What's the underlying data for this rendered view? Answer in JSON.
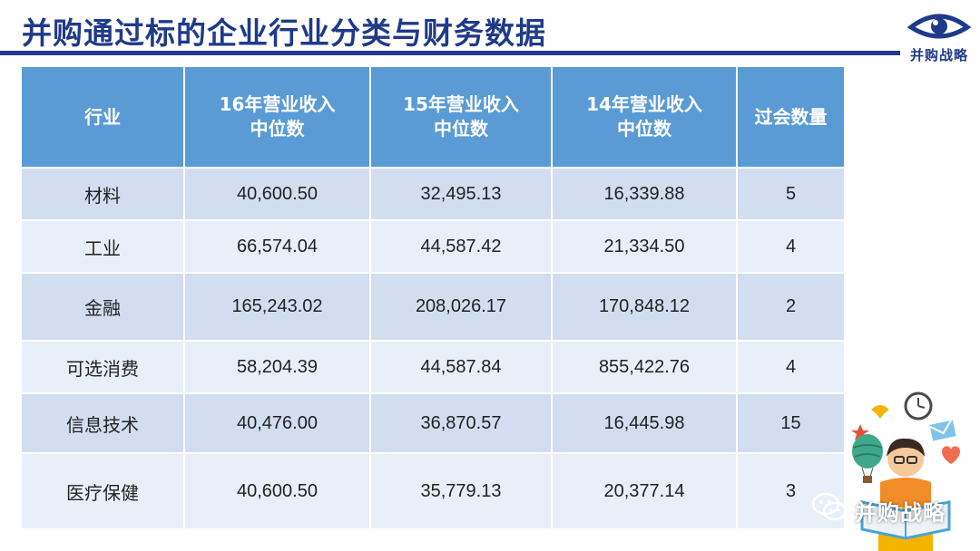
{
  "slide": {
    "title": "并购通过标的企业行业分类与财务数据",
    "logo_text": "并购战略",
    "watermark_text": "并购战略"
  },
  "table": {
    "headers": [
      [
        "行业"
      ],
      [
        "16年营业收入",
        "中位数"
      ],
      [
        "15年营业收入",
        "中位数"
      ],
      [
        "14年营业收入",
        "中位数"
      ],
      [
        "过会数量"
      ]
    ],
    "rows": [
      [
        "材料",
        "40,600.50",
        "32,495.13",
        "16,339.88",
        "5"
      ],
      [
        "工业",
        "66,574.04",
        "44,587.42",
        "21,334.50",
        "4"
      ],
      [
        "金融",
        "165,243.02",
        "208,026.17",
        "170,848.12",
        "2"
      ],
      [
        "可选消费",
        "58,204.39",
        "44,587.84",
        "855,422.76",
        "4"
      ],
      [
        "信息技术",
        "40,476.00",
        "36,870.57",
        "16,445.98",
        "15"
      ],
      [
        "医疗保健",
        "40,600.50",
        "35,779.13",
        "20,377.14",
        "3"
      ]
    ]
  },
  "colors": {
    "title": "#1f3a8a",
    "header_bg": "#5b9bd5",
    "row_odd": "#d2def0",
    "row_even": "#e9eff8"
  },
  "icons": [
    "eye-logo-icon",
    "person-reading-icon",
    "clock-icon",
    "bird-icon",
    "balloon-icon",
    "envelope-icon",
    "heart-icon",
    "star-icon",
    "wechat-icon"
  ]
}
